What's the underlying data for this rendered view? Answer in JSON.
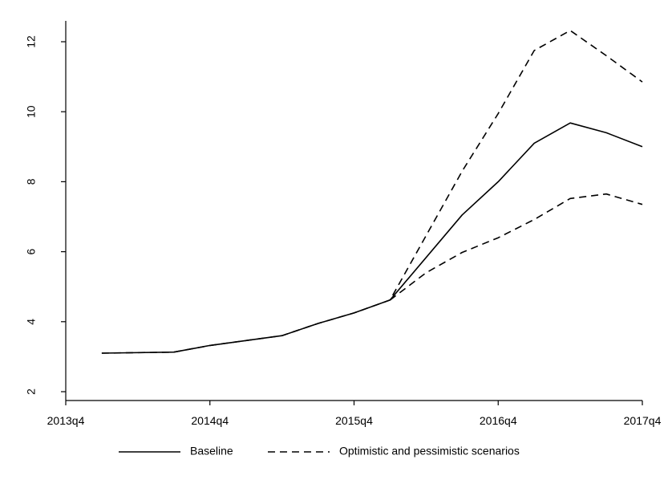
{
  "chart_data": {
    "type": "line",
    "title": "",
    "xlabel": "",
    "ylabel": "",
    "x": [
      0.5,
      1,
      1.5,
      2,
      2.5,
      3,
      3.5,
      4,
      4.5,
      5,
      5.5,
      6,
      6.5,
      7,
      7.5,
      8
    ],
    "x_ticks": [
      {
        "value": 0,
        "label": "2013q4"
      },
      {
        "value": 4,
        "label": "2014q4"
      },
      {
        "value": 8,
        "label": "2015q4"
      },
      {
        "value": 12,
        "label": "2016q4"
      },
      {
        "value": 16,
        "label": "2017q4"
      }
    ],
    "y_ticks": [
      2,
      4,
      6,
      8,
      10,
      12
    ],
    "xlim": [
      0,
      16
    ],
    "ylim": [
      2,
      12
    ],
    "grid": false,
    "legend_position": "bottom",
    "series": [
      {
        "name": "Baseline",
        "style": "solid",
        "points": [
          [
            1,
            3.1
          ],
          [
            3,
            3.13
          ],
          [
            4,
            3.32
          ],
          [
            6,
            3.6
          ],
          [
            7,
            3.95
          ],
          [
            8,
            4.25
          ],
          [
            9,
            4.62
          ],
          [
            11,
            7.05
          ],
          [
            12,
            8.0
          ],
          [
            13,
            9.1
          ],
          [
            14,
            9.68
          ],
          [
            15,
            9.4
          ],
          [
            16,
            9.0
          ]
        ]
      },
      {
        "name": "Optimistic and pessimistic scenarios",
        "style": "dashed",
        "points": [
          [
            1,
            3.1
          ],
          [
            3,
            3.13
          ],
          [
            4,
            3.32
          ],
          [
            6,
            3.6
          ],
          [
            7,
            3.95
          ],
          [
            8,
            4.25
          ],
          [
            9,
            4.62
          ],
          [
            11,
            8.3
          ],
          [
            12,
            9.95
          ],
          [
            13,
            11.75
          ],
          [
            14,
            12.32
          ],
          [
            15,
            11.6
          ],
          [
            16,
            10.85
          ]
        ]
      },
      {
        "name": "",
        "style": "dashed",
        "points": [
          [
            9,
            4.62
          ],
          [
            10,
            5.4
          ],
          [
            11,
            5.98
          ],
          [
            12,
            6.4
          ],
          [
            13,
            6.92
          ],
          [
            14,
            7.52
          ],
          [
            15,
            7.65
          ],
          [
            16,
            7.35
          ]
        ]
      }
    ],
    "colors": {
      "line": "#000000",
      "axis": "#000000",
      "background": "#ffffff"
    }
  }
}
